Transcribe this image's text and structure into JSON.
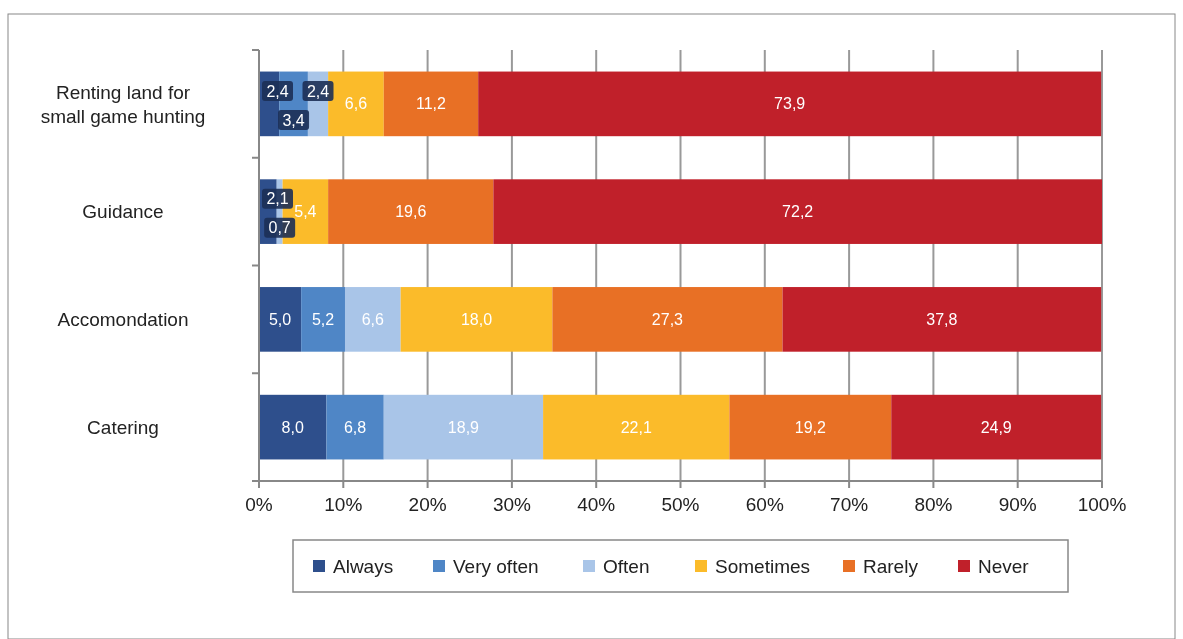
{
  "chart_data": {
    "type": "bar",
    "orientation": "horizontal",
    "stacked": true,
    "categories": [
      "Renting land for small game hunting",
      "Guidance",
      "Accomondation",
      "Catering"
    ],
    "series": [
      {
        "name": "Always",
        "color": "#2e4f8c",
        "values": [
          2.4,
          2.1,
          5.0,
          8.0
        ],
        "value_labels": [
          "2,4",
          "2,1",
          "5,0",
          "8,0"
        ]
      },
      {
        "name": "Very often",
        "color": "#4f86c6",
        "values": [
          3.4,
          0,
          5.2,
          6.8
        ],
        "value_labels": [
          "3,4",
          null,
          "5,2",
          "6,8"
        ]
      },
      {
        "name": "Often",
        "color": "#a9c5e8",
        "values": [
          2.4,
          0.7,
          6.6,
          18.9
        ],
        "value_labels": [
          "2,4",
          "0,7",
          "6,6",
          "18,9"
        ]
      },
      {
        "name": "Sometimes",
        "color": "#fbbb2a",
        "values": [
          6.6,
          5.4,
          18.0,
          22.1
        ],
        "value_labels": [
          "6,6",
          "5,4",
          "18,0",
          "22,1"
        ]
      },
      {
        "name": "Rarely",
        "color": "#e87025",
        "values": [
          11.2,
          19.6,
          27.3,
          19.2
        ],
        "value_labels": [
          "11,2",
          "19,6",
          "27,3",
          "19,2"
        ]
      },
      {
        "name": "Never",
        "color": "#c0202a",
        "values": [
          73.9,
          72.2,
          37.8,
          24.9
        ],
        "value_labels": [
          "73,9",
          "72,2",
          "37,8",
          "24,9"
        ]
      }
    ],
    "xlim": [
      0,
      100
    ],
    "xticks": [
      {
        "value": 0,
        "label": "0%"
      },
      {
        "value": 10,
        "label": "10%"
      },
      {
        "value": 20,
        "label": "20%"
      },
      {
        "value": 30,
        "label": "30%"
      },
      {
        "value": 40,
        "label": "40%"
      },
      {
        "value": 50,
        "label": "50%"
      },
      {
        "value": 60,
        "label": "60%"
      },
      {
        "value": 70,
        "label": "70%"
      },
      {
        "value": 80,
        "label": "80%"
      },
      {
        "value": 90,
        "label": "90%"
      },
      {
        "value": 100,
        "label": "100%"
      }
    ],
    "grid": "x",
    "legend": "bottom"
  }
}
